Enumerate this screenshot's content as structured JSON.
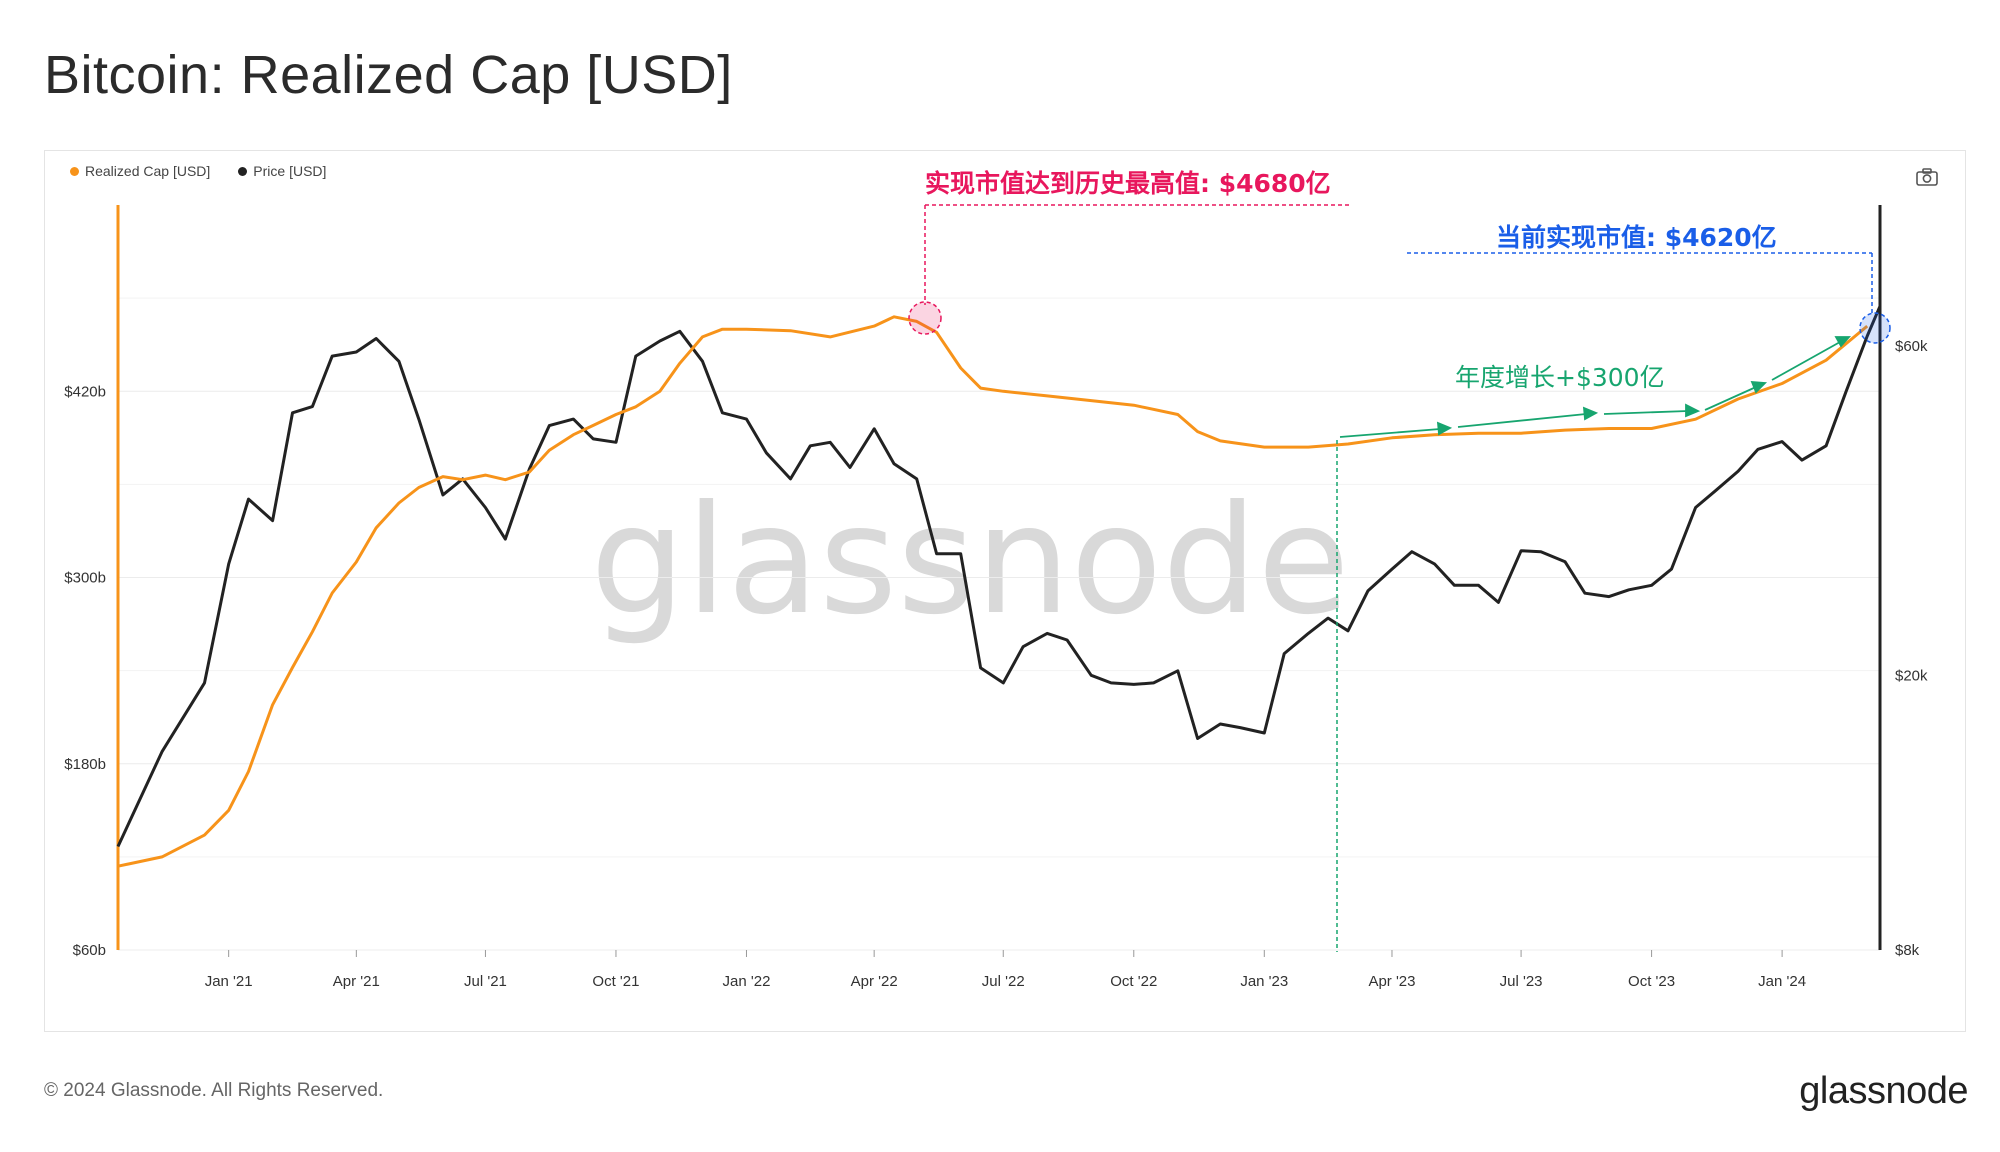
{
  "title": "Bitcoin: Realized Cap [USD]",
  "legend": [
    {
      "label": "Realized Cap [USD]",
      "color": "#f7931a"
    },
    {
      "label": "Price [USD]",
      "color": "#222222"
    }
  ],
  "footer": {
    "copyright": "© 2024 Glassnode. All Rights Reserved.",
    "logo": "glassnode"
  },
  "watermark": "glassnode",
  "icons": {
    "camera": "camera-icon"
  },
  "colors": {
    "realized": "#f7931a",
    "price": "#222222",
    "pink": "#e8175d",
    "blue": "#1a5ee8",
    "green": "#17a56f"
  },
  "annotations": {
    "ath": "实现市值达到历史最高值: $4680亿",
    "current": "当前实现市值: $4620亿",
    "growth": "年度增长+$300亿"
  },
  "chart_data": {
    "type": "line",
    "x_ticks": [
      "Jan '21",
      "Apr '21",
      "Jul '21",
      "Oct '21",
      "Jan '22",
      "Apr '22",
      "Jul '22",
      "Oct '22",
      "Jan '23",
      "Apr '23",
      "Jul '23",
      "Oct '23",
      "Jan '24"
    ],
    "y_left_ticks": [
      "$60b",
      "$180b",
      "$300b",
      "$420b"
    ],
    "y_right_ticks": [
      "$8k",
      "$20k",
      "$60k"
    ],
    "y_left_range": [
      60,
      540
    ],
    "y_right_range": [
      8000,
      96000
    ],
    "y_right_scale": "log",
    "series": [
      {
        "name": "Realized Cap [USD]",
        "axis": "left",
        "unit": "billion USD",
        "x": [
          "2020-10-15",
          "2020-11-15",
          "2020-12-15",
          "2021-01-01",
          "2021-01-15",
          "2021-02-01",
          "2021-02-15",
          "2021-03-01",
          "2021-03-15",
          "2021-04-01",
          "2021-04-15",
          "2021-05-01",
          "2021-05-15",
          "2021-06-01",
          "2021-06-15",
          "2021-07-01",
          "2021-07-15",
          "2021-08-01",
          "2021-08-15",
          "2021-09-01",
          "2021-09-15",
          "2021-10-01",
          "2021-10-15",
          "2021-11-01",
          "2021-11-15",
          "2021-12-01",
          "2021-12-15",
          "2022-01-01",
          "2022-02-01",
          "2022-03-01",
          "2022-04-01",
          "2022-04-15",
          "2022-05-01",
          "2022-05-15",
          "2022-06-01",
          "2022-06-15",
          "2022-07-01",
          "2022-08-01",
          "2022-09-01",
          "2022-10-01",
          "2022-11-01",
          "2022-11-15",
          "2022-12-01",
          "2023-01-01",
          "2023-02-01",
          "2023-03-01",
          "2023-04-01",
          "2023-05-01",
          "2023-06-01",
          "2023-07-01",
          "2023-08-01",
          "2023-09-01",
          "2023-10-01",
          "2023-11-01",
          "2023-12-01",
          "2024-01-01",
          "2024-02-01",
          "2024-03-01"
        ],
        "values": [
          114,
          120,
          134,
          150,
          175,
          218,
          242,
          265,
          290,
          310,
          332,
          348,
          358,
          365,
          363,
          366,
          363,
          368,
          382,
          392,
          398,
          405,
          410,
          420,
          438,
          455,
          460,
          460,
          459,
          455,
          462,
          468,
          465,
          458,
          435,
          422,
          420,
          417,
          414,
          411,
          405,
          394,
          388,
          384,
          384,
          386,
          390,
          392,
          393,
          393,
          395,
          396,
          396,
          402,
          415,
          425,
          440,
          462
        ]
      },
      {
        "name": "Price [USD]",
        "axis": "right",
        "unit": "USD",
        "x": [
          "2020-10-15",
          "2020-11-15",
          "2020-12-15",
          "2021-01-01",
          "2021-01-15",
          "2021-02-01",
          "2021-02-15",
          "2021-03-01",
          "2021-03-15",
          "2021-04-01",
          "2021-04-15",
          "2021-05-01",
          "2021-05-15",
          "2021-06-01",
          "2021-06-15",
          "2021-07-01",
          "2021-07-15",
          "2021-08-01",
          "2021-08-15",
          "2021-09-01",
          "2021-09-15",
          "2021-10-01",
          "2021-10-15",
          "2021-11-01",
          "2021-11-15",
          "2021-12-01",
          "2021-12-15",
          "2022-01-01",
          "2022-01-15",
          "2022-02-01",
          "2022-02-15",
          "2022-03-01",
          "2022-03-15",
          "2022-04-01",
          "2022-04-15",
          "2022-05-01",
          "2022-05-15",
          "2022-06-01",
          "2022-06-15",
          "2022-07-01",
          "2022-07-15",
          "2022-08-01",
          "2022-08-15",
          "2022-09-01",
          "2022-09-15",
          "2022-10-01",
          "2022-10-15",
          "2022-11-01",
          "2022-11-15",
          "2022-12-01",
          "2022-12-15",
          "2023-01-01",
          "2023-01-15",
          "2023-02-01",
          "2023-02-15",
          "2023-03-01",
          "2023-03-15",
          "2023-04-01",
          "2023-04-15",
          "2023-05-01",
          "2023-05-15",
          "2023-06-01",
          "2023-06-15",
          "2023-07-01",
          "2023-07-15",
          "2023-08-01",
          "2023-08-15",
          "2023-09-01",
          "2023-09-15",
          "2023-10-01",
          "2023-10-15",
          "2023-11-01",
          "2023-11-15",
          "2023-12-01",
          "2023-12-15",
          "2024-01-01",
          "2024-01-15",
          "2024-02-01",
          "2024-02-15",
          "2024-03-01",
          "2024-03-10"
        ],
        "values": [
          11300,
          15500,
          19500,
          29000,
          36000,
          33500,
          48000,
          49000,
          58000,
          58800,
          61500,
          57000,
          47000,
          36500,
          38500,
          35000,
          31500,
          39800,
          46000,
          47000,
          44000,
          43500,
          58000,
          61000,
          63000,
          57000,
          48000,
          47000,
          42000,
          38500,
          43000,
          43500,
          40000,
          45500,
          40500,
          38500,
          30000,
          30000,
          20500,
          19500,
          22000,
          23000,
          22500,
          20000,
          19500,
          19400,
          19500,
          20300,
          16200,
          17000,
          16800,
          16500,
          21500,
          23000,
          24200,
          23200,
          26500,
          28500,
          30200,
          29000,
          27000,
          27000,
          25500,
          30300,
          30200,
          29200,
          26300,
          26000,
          26600,
          27000,
          28500,
          35000,
          37000,
          39500,
          42500,
          43600,
          41000,
          43000,
          51500,
          62000,
          68500
        ]
      }
    ]
  }
}
